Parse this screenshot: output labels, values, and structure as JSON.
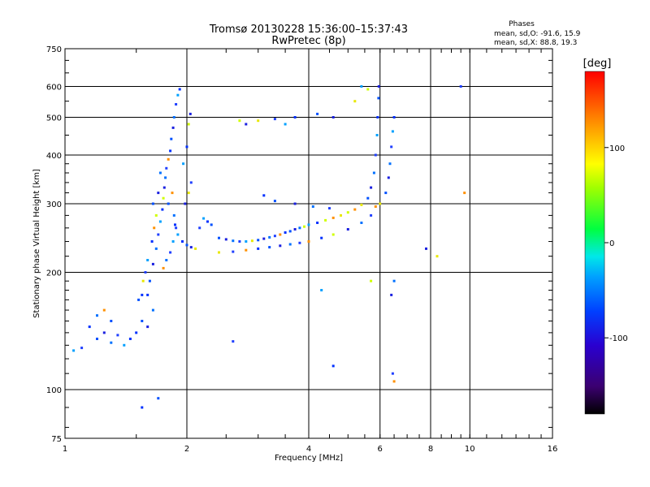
{
  "chart_data": {
    "type": "scatter",
    "title": "Tromsø 20130228 15:36:00–15:37:43",
    "subtitle": "RwPretec (8p)",
    "stats": {
      "heading": "Phases",
      "line1": "mean, sd,O: -91.6, 15.9",
      "line2": "mean, sd,X:  88.8, 19.3"
    },
    "xlabel": "Frequency [MHz]",
    "ylabel": "Stationary phase Virtual Height [km]",
    "x_scale": "log",
    "y_scale": "log",
    "xlim": [
      1,
      16
    ],
    "ylim": [
      75,
      750
    ],
    "x_ticks": [
      1,
      2,
      4,
      6,
      8,
      10,
      16
    ],
    "x_tick_labels": [
      "1",
      "2",
      "4",
      "6",
      "8",
      "10",
      "16"
    ],
    "y_ticks": [
      75,
      100,
      200,
      300,
      400,
      500,
      600,
      750
    ],
    "y_tick_labels": [
      "75",
      "100",
      "200",
      "300",
      "400",
      "500",
      "600",
      "750"
    ],
    "grid": true,
    "colorbar": {
      "label": "[deg]",
      "range": [
        -180,
        180
      ],
      "ticks": [
        100,
        0,
        -100
      ],
      "tick_labels": [
        "100",
        "0",
        "-100"
      ]
    },
    "series": [
      {
        "values": [
          {
            "x": 1.6,
            "y": 175
          },
          {
            "x": 1.62,
            "y": 190
          },
          {
            "x": 1.65,
            "y": 210
          },
          {
            "x": 1.68,
            "y": 230
          },
          {
            "x": 1.7,
            "y": 250
          },
          {
            "x": 1.72,
            "y": 270
          },
          {
            "x": 1.74,
            "y": 290
          },
          {
            "x": 1.75,
            "y": 310
          },
          {
            "x": 1.76,
            "y": 330
          },
          {
            "x": 1.77,
            "y": 350
          },
          {
            "x": 1.78,
            "y": 370
          },
          {
            "x": 1.8,
            "y": 390
          },
          {
            "x": 1.82,
            "y": 410
          },
          {
            "x": 1.83,
            "y": 440
          },
          {
            "x": 1.85,
            "y": 470
          },
          {
            "x": 1.86,
            "y": 500
          },
          {
            "x": 1.88,
            "y": 540
          },
          {
            "x": 1.9,
            "y": 570
          },
          {
            "x": 1.92,
            "y": 590
          },
          {
            "x": 1.65,
            "y": 300
          },
          {
            "x": 1.7,
            "y": 320
          },
          {
            "x": 1.72,
            "y": 360
          },
          {
            "x": 1.68,
            "y": 280
          },
          {
            "x": 1.66,
            "y": 260
          },
          {
            "x": 1.64,
            "y": 240
          },
          {
            "x": 1.8,
            "y": 300
          },
          {
            "x": 1.84,
            "y": 320
          },
          {
            "x": 1.86,
            "y": 280
          },
          {
            "x": 1.88,
            "y": 260
          },
          {
            "x": 1.9,
            "y": 250
          },
          {
            "x": 1.95,
            "y": 240
          },
          {
            "x": 2.0,
            "y": 235
          },
          {
            "x": 2.05,
            "y": 232
          },
          {
            "x": 2.1,
            "y": 230
          },
          {
            "x": 2.15,
            "y": 260
          },
          {
            "x": 2.2,
            "y": 275
          },
          {
            "x": 2.25,
            "y": 270
          },
          {
            "x": 2.3,
            "y": 265
          },
          {
            "x": 1.98,
            "y": 300
          },
          {
            "x": 2.02,
            "y": 320
          },
          {
            "x": 2.05,
            "y": 340
          },
          {
            "x": 1.96,
            "y": 380
          },
          {
            "x": 2.0,
            "y": 420
          },
          {
            "x": 2.02,
            "y": 480
          },
          {
            "x": 2.04,
            "y": 510
          },
          {
            "x": 1.56,
            "y": 190
          },
          {
            "x": 1.58,
            "y": 200
          },
          {
            "x": 1.6,
            "y": 215
          },
          {
            "x": 1.55,
            "y": 175
          },
          {
            "x": 1.52,
            "y": 170
          },
          {
            "x": 1.75,
            "y": 205
          },
          {
            "x": 1.78,
            "y": 215
          },
          {
            "x": 1.82,
            "y": 225
          },
          {
            "x": 1.85,
            "y": 240
          },
          {
            "x": 1.87,
            "y": 265
          },
          {
            "x": 2.4,
            "y": 245
          },
          {
            "x": 2.5,
            "y": 243
          },
          {
            "x": 2.6,
            "y": 241
          },
          {
            "x": 2.7,
            "y": 240
          },
          {
            "x": 2.8,
            "y": 240
          },
          {
            "x": 2.9,
            "y": 241
          },
          {
            "x": 3.0,
            "y": 242
          },
          {
            "x": 3.1,
            "y": 244
          },
          {
            "x": 3.2,
            "y": 246
          },
          {
            "x": 3.3,
            "y": 248
          },
          {
            "x": 3.4,
            "y": 250
          },
          {
            "x": 3.5,
            "y": 253
          },
          {
            "x": 3.6,
            "y": 255
          },
          {
            "x": 3.7,
            "y": 258
          },
          {
            "x": 3.8,
            "y": 260
          },
          {
            "x": 3.9,
            "y": 262
          },
          {
            "x": 4.0,
            "y": 265
          },
          {
            "x": 4.2,
            "y": 268
          },
          {
            "x": 4.4,
            "y": 272
          },
          {
            "x": 4.6,
            "y": 276
          },
          {
            "x": 4.8,
            "y": 280
          },
          {
            "x": 5.0,
            "y": 285
          },
          {
            "x": 5.2,
            "y": 290
          },
          {
            "x": 5.4,
            "y": 298
          },
          {
            "x": 5.6,
            "y": 310
          },
          {
            "x": 5.7,
            "y": 330
          },
          {
            "x": 5.8,
            "y": 360
          },
          {
            "x": 5.85,
            "y": 400
          },
          {
            "x": 5.9,
            "y": 450
          },
          {
            "x": 5.92,
            "y": 500
          },
          {
            "x": 5.95,
            "y": 560
          },
          {
            "x": 5.96,
            "y": 600
          },
          {
            "x": 2.4,
            "y": 225
          },
          {
            "x": 2.6,
            "y": 226
          },
          {
            "x": 2.8,
            "y": 228
          },
          {
            "x": 3.0,
            "y": 230
          },
          {
            "x": 3.2,
            "y": 232
          },
          {
            "x": 3.4,
            "y": 234
          },
          {
            "x": 3.6,
            "y": 236
          },
          {
            "x": 3.8,
            "y": 238
          },
          {
            "x": 4.0,
            "y": 240
          },
          {
            "x": 4.3,
            "y": 245
          },
          {
            "x": 4.6,
            "y": 250
          },
          {
            "x": 5.0,
            "y": 258
          },
          {
            "x": 5.4,
            "y": 268
          },
          {
            "x": 5.7,
            "y": 280
          },
          {
            "x": 5.85,
            "y": 295
          },
          {
            "x": 6.0,
            "y": 300
          },
          {
            "x": 6.2,
            "y": 320
          },
          {
            "x": 6.3,
            "y": 350
          },
          {
            "x": 6.35,
            "y": 380
          },
          {
            "x": 6.4,
            "y": 420
          },
          {
            "x": 6.45,
            "y": 460
          },
          {
            "x": 6.5,
            "y": 500
          },
          {
            "x": 2.7,
            "y": 490
          },
          {
            "x": 2.8,
            "y": 480
          },
          {
            "x": 3.0,
            "y": 490
          },
          {
            "x": 3.3,
            "y": 495
          },
          {
            "x": 3.5,
            "y": 480
          },
          {
            "x": 3.7,
            "y": 500
          },
          {
            "x": 4.2,
            "y": 510
          },
          {
            "x": 4.6,
            "y": 500
          },
          {
            "x": 5.2,
            "y": 550
          },
          {
            "x": 5.6,
            "y": 590
          },
          {
            "x": 5.4,
            "y": 600
          },
          {
            "x": 1.15,
            "y": 145
          },
          {
            "x": 1.2,
            "y": 135
          },
          {
            "x": 1.25,
            "y": 140
          },
          {
            "x": 1.3,
            "y": 132
          },
          {
            "x": 1.35,
            "y": 138
          },
          {
            "x": 1.4,
            "y": 130
          },
          {
            "x": 1.45,
            "y": 135
          },
          {
            "x": 1.3,
            "y": 150
          },
          {
            "x": 1.25,
            "y": 160
          },
          {
            "x": 1.2,
            "y": 155
          },
          {
            "x": 1.1,
            "y": 128
          },
          {
            "x": 1.05,
            "y": 126
          },
          {
            "x": 1.5,
            "y": 140
          },
          {
            "x": 1.55,
            "y": 150
          },
          {
            "x": 1.6,
            "y": 145
          },
          {
            "x": 1.65,
            "y": 160
          },
          {
            "x": 2.6,
            "y": 133
          },
          {
            "x": 4.3,
            "y": 180
          },
          {
            "x": 4.6,
            "y": 115
          },
          {
            "x": 5.7,
            "y": 190
          },
          {
            "x": 7.8,
            "y": 230
          },
          {
            "x": 8.3,
            "y": 220
          },
          {
            "x": 9.5,
            "y": 600
          },
          {
            "x": 9.7,
            "y": 320
          },
          {
            "x": 1.55,
            "y": 90
          },
          {
            "x": 1.7,
            "y": 95
          },
          {
            "x": 6.4,
            "y": 175
          },
          {
            "x": 6.5,
            "y": 190
          },
          {
            "x": 6.45,
            "y": 110
          },
          {
            "x": 6.5,
            "y": 105
          },
          {
            "x": 3.1,
            "y": 315
          },
          {
            "x": 3.3,
            "y": 305
          },
          {
            "x": 3.7,
            "y": 300
          },
          {
            "x": 4.1,
            "y": 295
          },
          {
            "x": 4.5,
            "y": 292
          }
        ]
      }
    ]
  }
}
